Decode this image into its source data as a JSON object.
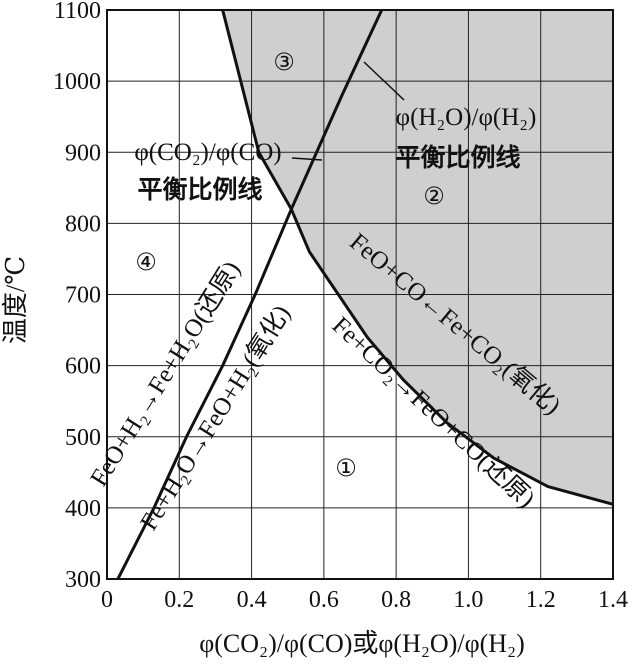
{
  "chart_data": {
    "type": "line",
    "xlabel": "φ(CO₂)/φ(CO)或φ(H₂O)/φ(H₂)",
    "ylabel": "温度/℃",
    "xlim": [
      0,
      1.4
    ],
    "ylim": [
      300,
      1100
    ],
    "x_ticks": [
      "0",
      "0.2",
      "0.4",
      "0.6",
      "0.8",
      "1.0",
      "1.2",
      "1.4"
    ],
    "y_ticks": [
      "300",
      "400",
      "500",
      "600",
      "700",
      "800",
      "900",
      "1000",
      "1100"
    ],
    "grid": true,
    "series": [
      {
        "name": "φ(CO₂)/φ(CO)平衡比例线",
        "points": [
          [
            0.32,
            1100
          ],
          [
            0.37,
            1000
          ],
          [
            0.42,
            900
          ],
          [
            0.51,
            820
          ],
          [
            0.56,
            760
          ],
          [
            0.64,
            700
          ],
          [
            0.72,
            640
          ],
          [
            0.82,
            580
          ],
          [
            0.94,
            520
          ],
          [
            1.07,
            470
          ],
          [
            1.22,
            430
          ],
          [
            1.4,
            405
          ]
        ]
      },
      {
        "name": "φ(H₂O)/φ(H₂)平衡比例线",
        "points": [
          [
            0.03,
            300
          ],
          [
            0.13,
            400
          ],
          [
            0.22,
            500
          ],
          [
            0.32,
            600
          ],
          [
            0.41,
            700
          ],
          [
            0.51,
            820
          ],
          [
            0.58,
            900
          ],
          [
            0.65,
            980
          ],
          [
            0.76,
            1100
          ]
        ]
      }
    ],
    "shaded_region": "above φ(CO₂)/φ(CO) equilibrium curve (FeO stable)",
    "labels": {
      "co_curve_label_line1": "φ(CO₂)/φ(CO)",
      "co_curve_label_line2": "平衡比例线",
      "h2_curve_label_line1": "φ(H₂O)/φ(H₂)",
      "h2_curve_label_line2": "平衡比例线",
      "reaction_co_upper": "FeO+CO←Fe+CO₂(氧化)",
      "reaction_co_lower": "Fe+CO₂→FeO+CO(还原)",
      "reaction_h2_left": "FeO+H₂→Fe+H₂O(还原)",
      "reaction_h2_right": "Fe+H₂O→FeO+H₂(氧化)"
    },
    "regions": [
      "①",
      "②",
      "③",
      "④"
    ]
  }
}
